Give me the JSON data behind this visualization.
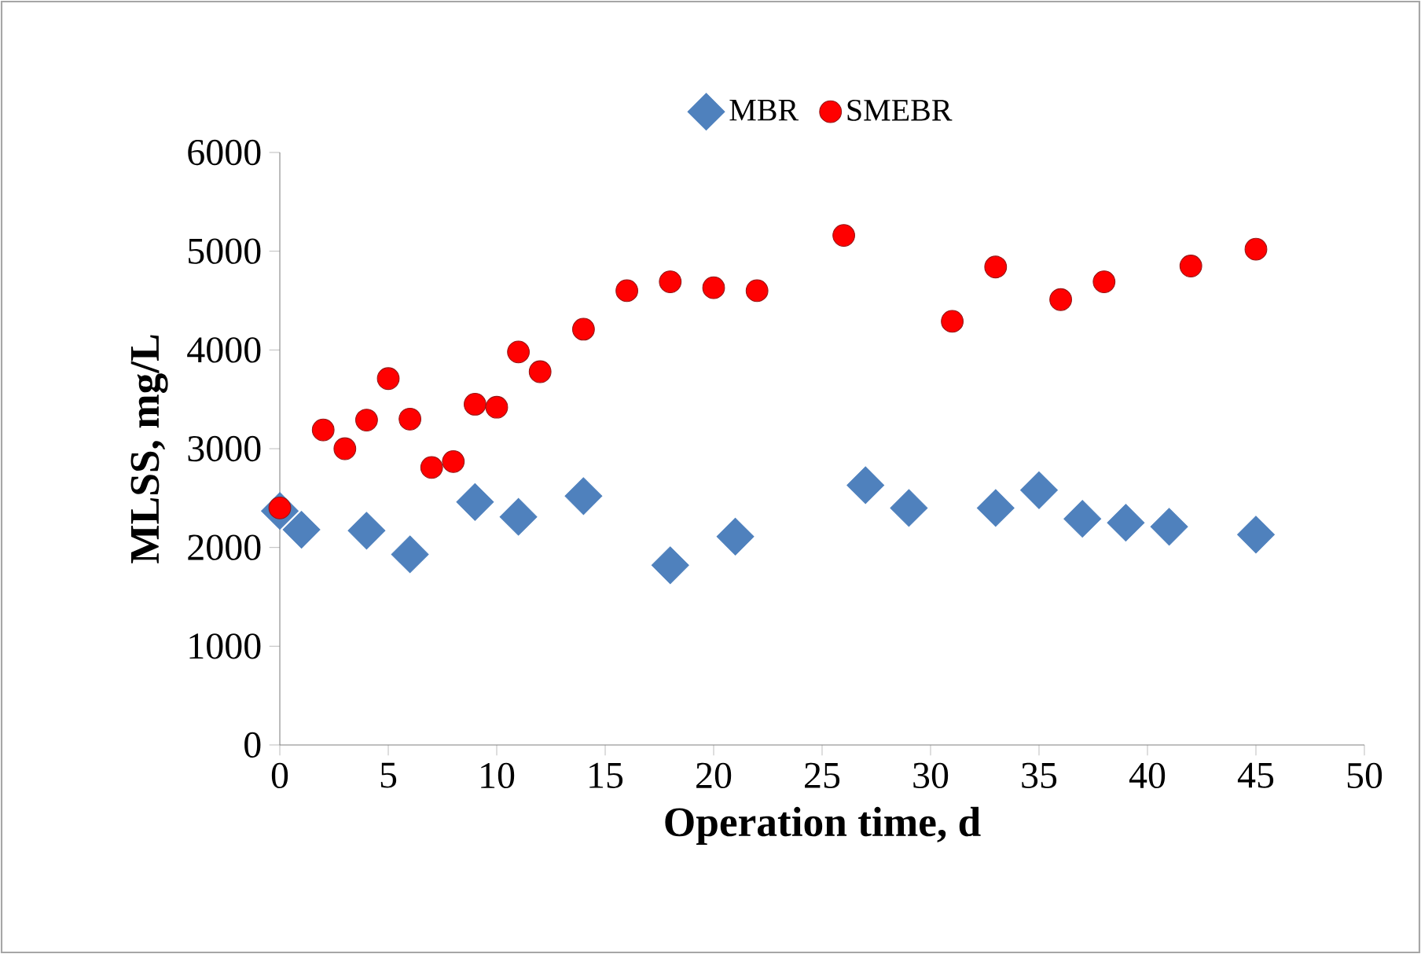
{
  "chart_data": {
    "type": "scatter",
    "xlabel": "Operation time, d",
    "ylabel": "MLSS, mg/L",
    "xlim": [
      0,
      50
    ],
    "xticks": [
      0,
      5,
      10,
      15,
      20,
      25,
      30,
      35,
      40,
      45,
      50
    ],
    "ylim": [
      0,
      6000
    ],
    "yticks": [
      0,
      1000,
      2000,
      3000,
      4000,
      5000,
      6000
    ],
    "legend": "top",
    "grid": false,
    "series": [
      {
        "name": "MBR",
        "color": "#4f81bd",
        "marker": "diamond",
        "x": [
          0,
          1,
          4,
          6,
          9,
          11,
          14,
          18,
          21,
          27,
          29,
          33,
          35,
          37,
          39,
          41,
          45
        ],
        "values": [
          2370,
          2180,
          2170,
          1930,
          2460,
          2310,
          2520,
          1820,
          2110,
          2630,
          2400,
          2400,
          2580,
          2290,
          2250,
          2210,
          2130
        ]
      },
      {
        "name": "SMEBR",
        "color": "#ff0000",
        "marker": "circle",
        "x": [
          0,
          2,
          3,
          4,
          5,
          6,
          7,
          8,
          9,
          10,
          11,
          12,
          14,
          16,
          18,
          20,
          22,
          26,
          31,
          33,
          36,
          38,
          42,
          45
        ],
        "values": [
          2400,
          3190,
          3000,
          3290,
          3710,
          3300,
          2810,
          2870,
          3450,
          3420,
          3980,
          3780,
          4210,
          4600,
          4690,
          4630,
          4600,
          5160,
          4290,
          4840,
          4510,
          4690,
          4850,
          5020
        ]
      }
    ]
  }
}
